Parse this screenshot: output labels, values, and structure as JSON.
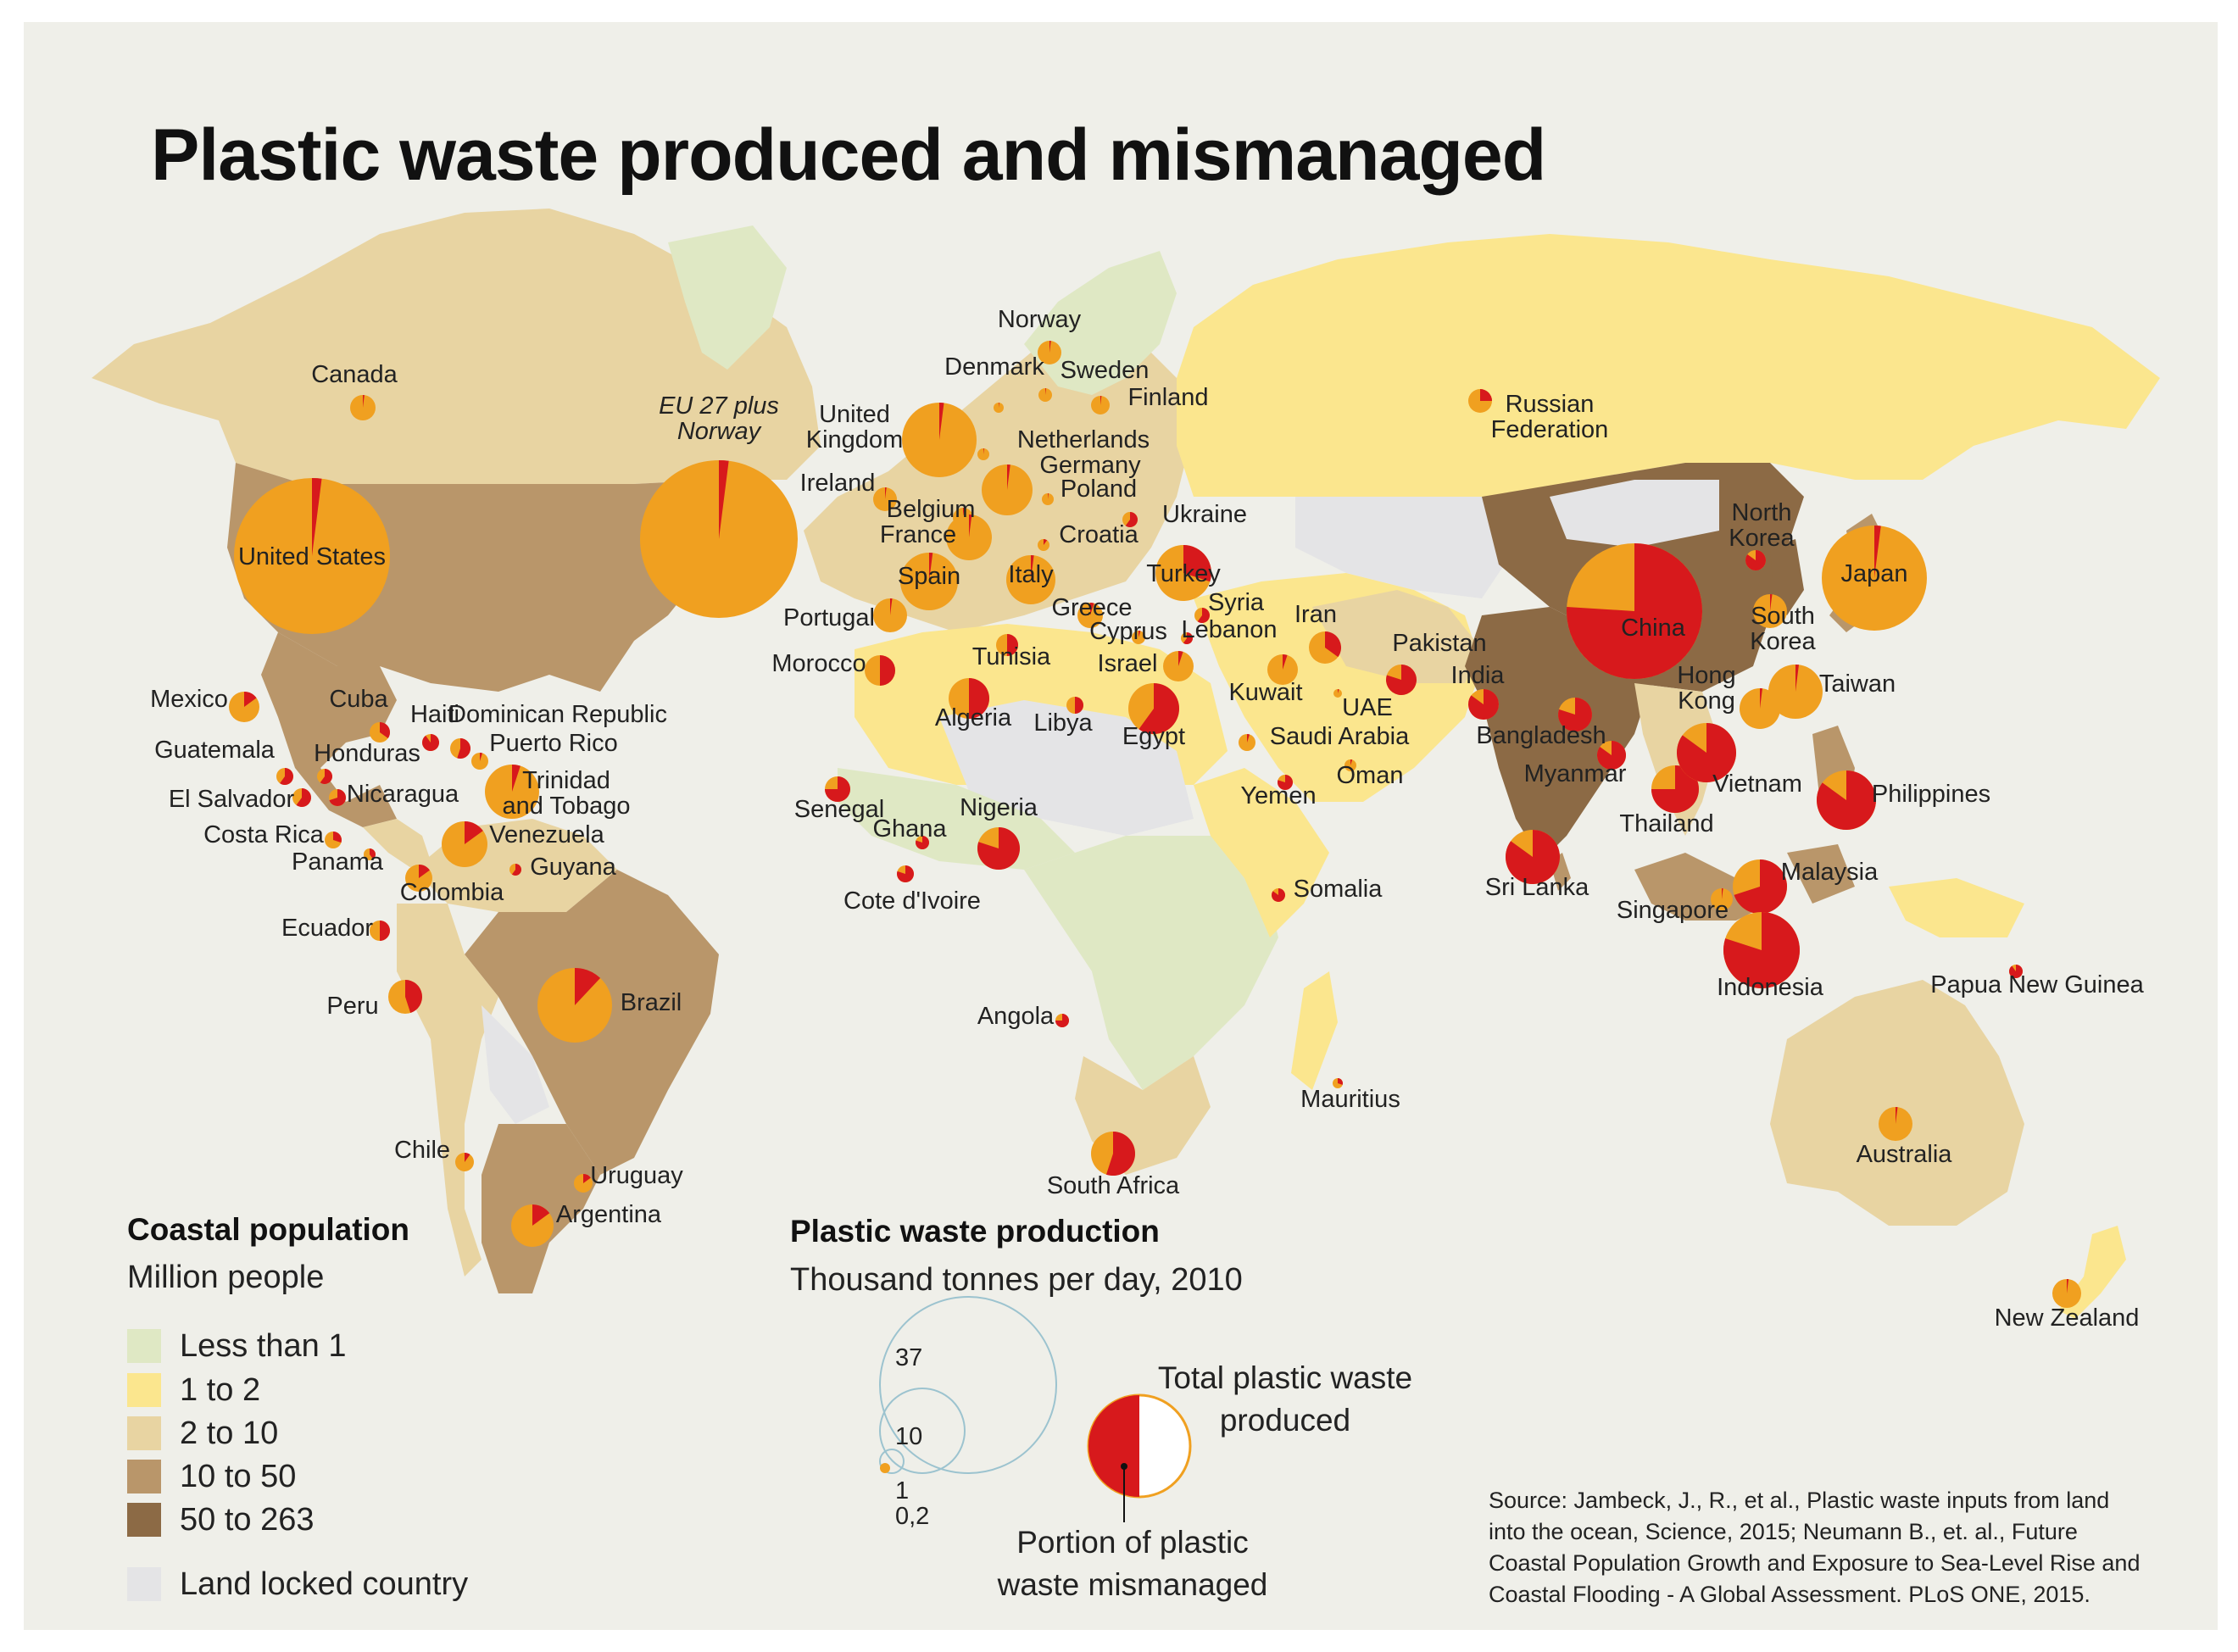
{
  "title": "Plastic waste produced and mismanaged",
  "colors": {
    "background": "#efefe9",
    "produced": "#f0a020",
    "mismanaged": "#d7191c",
    "pop_lt1": "#dfe8c4",
    "pop_1_2": "#fbe68e",
    "pop_2_10": "#e8d4a2",
    "pop_10_50": "#b9966a",
    "pop_50_263": "#8c6a45",
    "landlocked": "#e4e4e6"
  },
  "legend_population": {
    "title": "Coastal population",
    "subtitle": "Million people",
    "items": [
      {
        "label": "Less than 1",
        "color": "#dfe8c4"
      },
      {
        "label": "1 to 2",
        "color": "#fbe68e"
      },
      {
        "label": "2 to 10",
        "color": "#e8d4a2"
      },
      {
        "label": "10 to 50",
        "color": "#b9966a"
      },
      {
        "label": "50 to 263",
        "color": "#8c6a45"
      }
    ],
    "landlocked": {
      "label": "Land locked country",
      "color": "#e4e4e6"
    }
  },
  "legend_production": {
    "title": "Plastic waste production",
    "subtitle": "Thousand tonnes per day, 2010",
    "scale_values": [
      "37",
      "10",
      "1",
      "0,2"
    ],
    "total_label_line1": "Total plastic waste",
    "total_label_line2": "produced",
    "portion_label_line1": "Portion of plastic",
    "portion_label_line2": "waste mismanaged"
  },
  "source": [
    "Source: Jambeck, J., R., et al., Plastic waste inputs from land",
    "into the ocean, Science, 2015; Neumann B., et. al., Future",
    "Coastal Population Growth and Exposure to Sea-Level Rise and",
    "Coastal Flooding - A Global Assessment. PLoS ONE, 2015."
  ],
  "countries": [
    {
      "name": "Canada",
      "share": 0.02,
      "pop": "2 to 10"
    },
    {
      "name": "United States",
      "share": 0.02,
      "pop": "10 to 50"
    },
    {
      "name": "EU 27 plus Norway",
      "share": 0.02
    },
    {
      "name": "Mexico",
      "share": 0.15,
      "pop": "10 to 50"
    },
    {
      "name": "Cuba",
      "share": 0.35,
      "pop": "2 to 10"
    },
    {
      "name": "Haiti",
      "share": 0.9,
      "pop": "2 to 10"
    },
    {
      "name": "Dominican Republic",
      "share": 0.55,
      "pop": "2 to 10"
    },
    {
      "name": "Puerto Rico",
      "share": 0.05,
      "pop": "2 to 10"
    },
    {
      "name": "Guatemala",
      "share": 0.6,
      "pop": "2 to 10"
    },
    {
      "name": "Honduras",
      "share": 0.6,
      "pop": "2 to 10"
    },
    {
      "name": "El Salvador",
      "share": 0.6,
      "pop": "2 to 10"
    },
    {
      "name": "Nicaragua",
      "share": 0.7,
      "pop": "2 to 10"
    },
    {
      "name": "Costa Rica",
      "share": 0.3,
      "pop": "1 to 2"
    },
    {
      "name": "Panama",
      "share": 0.4,
      "pop": "1 to 2"
    },
    {
      "name": "Trinidad and Tobago",
      "share": 0.05,
      "pop": "1 to 2"
    },
    {
      "name": "Venezuela",
      "share": 0.15,
      "pop": "10 to 50"
    },
    {
      "name": "Guyana",
      "share": 0.6,
      "pop": "Less than 1"
    },
    {
      "name": "Colombia",
      "share": 0.15,
      "pop": "10 to 50"
    },
    {
      "name": "Ecuador",
      "share": 0.5,
      "pop": "2 to 10"
    },
    {
      "name": "Peru",
      "share": 0.45,
      "pop": "2 to 10"
    },
    {
      "name": "Brazil",
      "share": 0.12,
      "pop": "10 to 50"
    },
    {
      "name": "Chile",
      "share": 0.1,
      "pop": "2 to 10"
    },
    {
      "name": "Uruguay",
      "share": 0.15,
      "pop": "1 to 2"
    },
    {
      "name": "Argentina",
      "share": 0.15,
      "pop": "10 to 50"
    },
    {
      "name": "Norway",
      "share": 0.02
    },
    {
      "name": "Denmark",
      "share": 0.02
    },
    {
      "name": "Sweden",
      "share": 0.02
    },
    {
      "name": "Finland",
      "share": 0.02
    },
    {
      "name": "United Kingdom",
      "share": 0.02
    },
    {
      "name": "Netherlands",
      "share": 0.02
    },
    {
      "name": "Germany",
      "share": 0.02
    },
    {
      "name": "Poland",
      "share": 0.02
    },
    {
      "name": "Ireland",
      "share": 0.02
    },
    {
      "name": "Belgium",
      "share": 0.02
    },
    {
      "name": "France",
      "share": 0.02
    },
    {
      "name": "Croatia",
      "share": 0.1
    },
    {
      "name": "Ukraine",
      "share": 0.6
    },
    {
      "name": "Spain",
      "share": 0.02
    },
    {
      "name": "Italy",
      "share": 0.02
    },
    {
      "name": "Turkey",
      "share": 0.3
    },
    {
      "name": "Portugal",
      "share": 0.02
    },
    {
      "name": "Greece",
      "share": 0.05
    },
    {
      "name": "Cyprus",
      "share": 0.05
    },
    {
      "name": "Syria",
      "share": 0.6
    },
    {
      "name": "Lebanon",
      "share": 0.6
    },
    {
      "name": "Israel",
      "share": 0.05
    },
    {
      "name": "Morocco",
      "share": 0.5
    },
    {
      "name": "Tunisia",
      "share": 0.5
    },
    {
      "name": "Algeria",
      "share": 0.5
    },
    {
      "name": "Libya",
      "share": 0.5
    },
    {
      "name": "Egypt",
      "share": 0.6
    },
    {
      "name": "Russian Federation",
      "share": 0.25
    },
    {
      "name": "Iran",
      "share": 0.35
    },
    {
      "name": "Pakistan",
      "share": 0.8
    },
    {
      "name": "Kuwait",
      "share": 0.05
    },
    {
      "name": "UAE",
      "share": 0.05
    },
    {
      "name": "Saudi Arabia",
      "share": 0.05
    },
    {
      "name": "Oman",
      "share": 0.05
    },
    {
      "name": "Yemen",
      "share": 0.8
    },
    {
      "name": "Somalia",
      "share": 0.85
    },
    {
      "name": "Senegal",
      "share": 0.75
    },
    {
      "name": "Ghana",
      "share": 0.8
    },
    {
      "name": "Nigeria",
      "share": 0.8
    },
    {
      "name": "Cote d'Ivoire",
      "share": 0.8
    },
    {
      "name": "Angola",
      "share": 0.75
    },
    {
      "name": "South Africa",
      "share": 0.55
    },
    {
      "name": "Mauritius",
      "share": 0.3
    },
    {
      "name": "China",
      "share": 0.76
    },
    {
      "name": "North Korea",
      "share": 0.85
    },
    {
      "name": "South Korea",
      "share": 0.02
    },
    {
      "name": "Japan",
      "share": 0.02
    },
    {
      "name": "India",
      "share": 0.85
    },
    {
      "name": "Bangladesh",
      "share": 0.8
    },
    {
      "name": "Myanmar",
      "share": 0.85
    },
    {
      "name": "Hong Kong",
      "share": 0.02
    },
    {
      "name": "Taiwan",
      "share": 0.02
    },
    {
      "name": "Thailand",
      "share": 0.75
    },
    {
      "name": "Vietnam",
      "share": 0.85
    },
    {
      "name": "Philippines",
      "share": 0.85
    },
    {
      "name": "Sri Lanka",
      "share": 0.85
    },
    {
      "name": "Malaysia",
      "share": 0.7
    },
    {
      "name": "Singapore",
      "share": 0.02
    },
    {
      "name": "Indonesia",
      "share": 0.8
    },
    {
      "name": "Papua New Guinea",
      "share": 0.9
    },
    {
      "name": "Australia",
      "share": 0.02
    },
    {
      "name": "New Zealand",
      "share": 0.02
    }
  ]
}
